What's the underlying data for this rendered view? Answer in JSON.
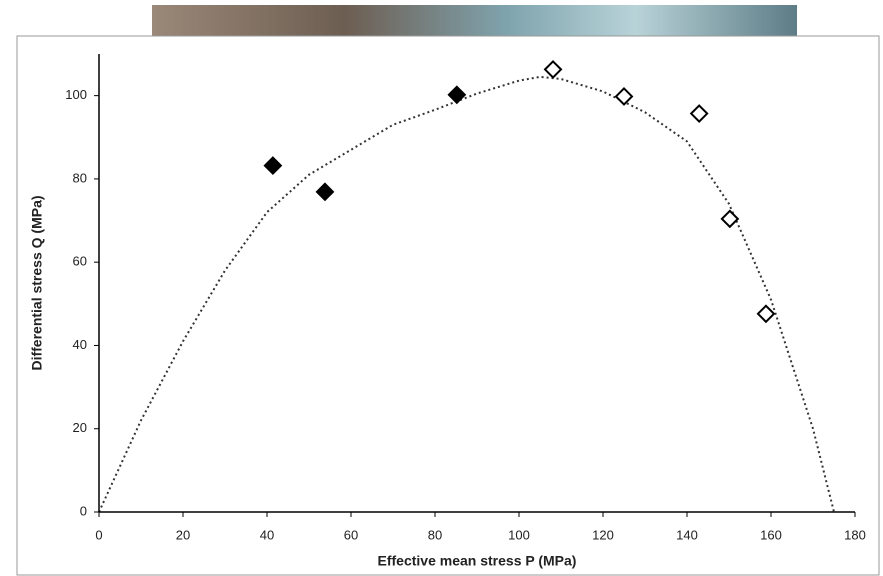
{
  "chart_data": {
    "type": "scatter",
    "x_label": "Effective mean stress P (MPa)",
    "y_label": "Differential stress Q (MPa)",
    "xlim": [
      0,
      180
    ],
    "xticks": [
      0,
      20,
      40,
      60,
      80,
      100,
      120,
      140,
      160,
      180
    ],
    "ylim": [
      0,
      110
    ],
    "yticks": [
      0,
      20,
      40,
      60,
      80,
      100
    ],
    "grid": false,
    "series": [
      {
        "marker": "diamond",
        "filled": true,
        "color": "#000000",
        "x": [
          41.4,
          53.8,
          85.2
        ],
        "values": [
          83.2,
          76.9,
          100.2
        ]
      },
      {
        "marker": "diamond",
        "filled": false,
        "color": "#000000",
        "x": [
          108.1,
          125,
          142.9,
          150.2,
          158.8
        ],
        "values": [
          106.3,
          99.8,
          95.7,
          70.4,
          47.6
        ]
      },
      {
        "marker": "dotted-line",
        "color": "#333333",
        "x": [
          0,
          10,
          20,
          30,
          40,
          50,
          60,
          70,
          80,
          90,
          100,
          105,
          110,
          120,
          130,
          140,
          150,
          160,
          170,
          175
        ],
        "values": [
          0,
          22,
          41,
          58,
          72,
          81,
          87,
          93,
          96.6,
          100.5,
          103.6,
          104.5,
          104,
          101,
          96,
          89,
          74,
          51,
          20,
          0
        ]
      }
    ]
  }
}
